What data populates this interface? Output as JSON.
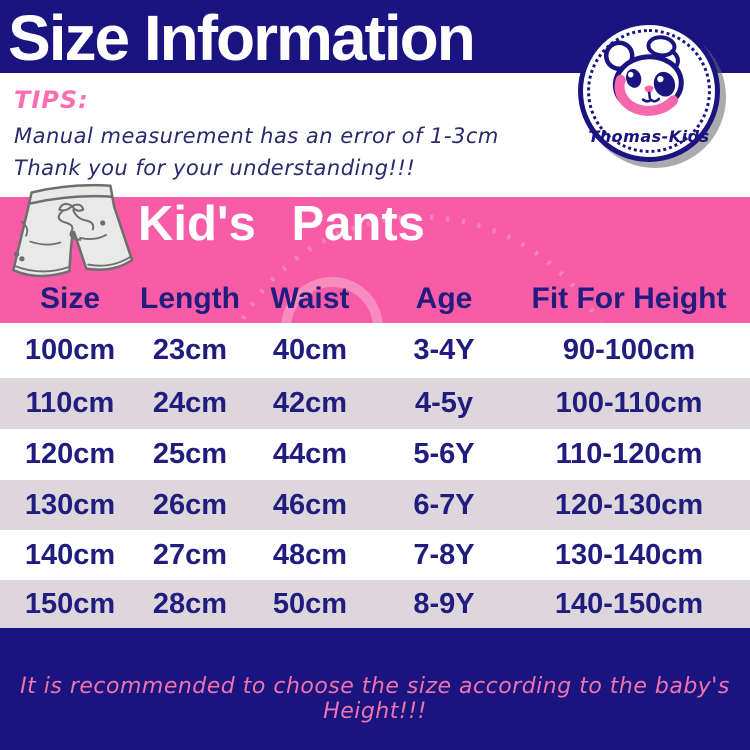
{
  "page": {
    "title_banner": "Size Information"
  },
  "logo": {
    "brand": "Thomas-Kids",
    "icon": "bear-logo-icon"
  },
  "tips": {
    "heading": "TIPS:",
    "lines": [
      "Manual measurement has an error of 1-3cm",
      "Thank you for your understanding!!!"
    ]
  },
  "section_banner": {
    "title": "Kid's Pants",
    "icon": "shorts-icon"
  },
  "size_table": {
    "columns": [
      "Size",
      "Length",
      "Waist",
      "Age",
      "Fit For Height"
    ],
    "rows": [
      [
        "100cm",
        "23cm",
        "40cm",
        "3-4Y",
        "90-100cm"
      ],
      [
        "110cm",
        "24cm",
        "42cm",
        "4-5y",
        "100-110cm"
      ],
      [
        "120cm",
        "25cm",
        "44cm",
        "5-6Y",
        "110-120cm"
      ],
      [
        "130cm",
        "26cm",
        "46cm",
        "6-7Y",
        "120-130cm"
      ],
      [
        "140cm",
        "27cm",
        "48cm",
        "7-8Y",
        "130-140cm"
      ],
      [
        "150cm",
        "28cm",
        "50cm",
        "8-9Y",
        "140-150cm"
      ]
    ]
  },
  "footer": {
    "note": "It is recommended to choose the size according to the baby's Height!!!"
  },
  "watermark": {
    "text": "Thomas-Kids"
  },
  "colors": {
    "navy": "#1A1480",
    "hot_pink": "#F95CA7",
    "alt_row": "#DDD6DC",
    "table_text": "#211D7E",
    "tips_pink": "#FB6EB4",
    "note_pink": "#F272AC",
    "white": "#FFFFFF"
  }
}
